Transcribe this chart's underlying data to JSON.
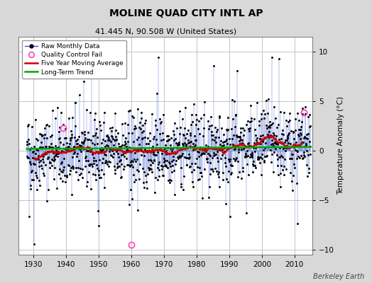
{
  "title": "MOLINE QUAD CITY INTL AP",
  "subtitle": "41.445 N, 90.508 W (United States)",
  "ylabel": "Temperature Anomaly (°C)",
  "credit": "Berkeley Earth",
  "xlim": [
    1925.5,
    2015.5
  ],
  "ylim": [
    -10.5,
    11.5
  ],
  "yticks": [
    -10,
    -5,
    0,
    5,
    10
  ],
  "xticks": [
    1930,
    1940,
    1950,
    1960,
    1970,
    1980,
    1990,
    2000,
    2010
  ],
  "year_start": 1928,
  "n_years": 87,
  "seed": 42,
  "line_color": "#3355cc",
  "dot_color": "#000000",
  "ma_color": "#cc0000",
  "trend_color": "#00aa00",
  "qc_color": "#ff44bb",
  "bg_color": "#d8d8d8",
  "plot_bg": "#ffffff",
  "qc_points": [
    [
      1960.0,
      -9.5
    ],
    [
      1939.25,
      2.3
    ],
    [
      2012.75,
      3.85
    ]
  ],
  "long_term_trend_y": [
    0.18,
    0.38
  ],
  "title_fontsize": 10,
  "subtitle_fontsize": 8,
  "legend_fontsize": 6.5,
  "tick_labelsize": 7.5,
  "ylabel_fontsize": 7.5,
  "credit_fontsize": 7
}
